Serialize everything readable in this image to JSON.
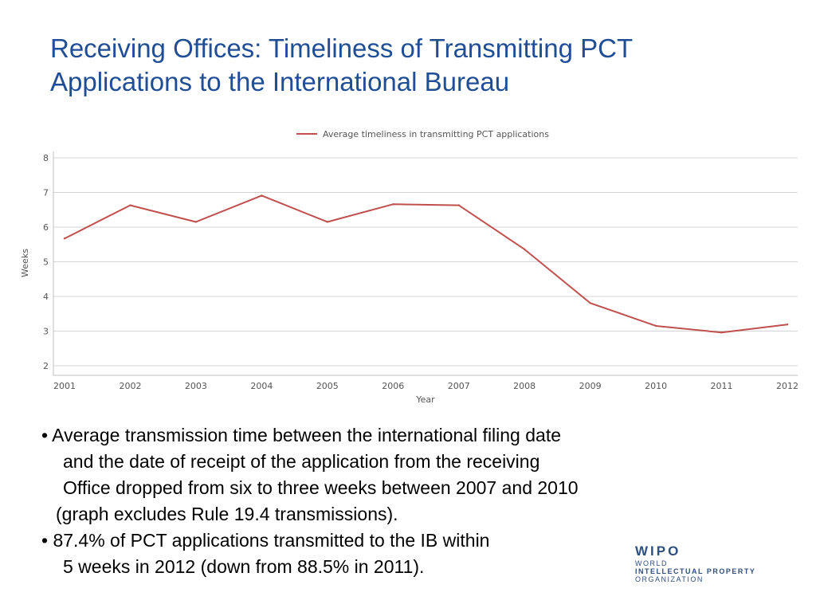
{
  "slide": {
    "title_line1": "Receiving Offices:  Timeliness of Transmitting PCT",
    "title_line2": "Applications to the International Bureau"
  },
  "chart_data": {
    "type": "line",
    "title": "",
    "xlabel": "Year",
    "ylabel": "Weeks",
    "ylim": [
      2,
      8
    ],
    "yticks": [
      2,
      3,
      4,
      5,
      6,
      7,
      8
    ],
    "grid": true,
    "legend_position": "top-center",
    "categories": [
      "2001",
      "2002",
      "2003",
      "2004",
      "2005",
      "2006",
      "2007",
      "2008",
      "2009",
      "2010",
      "2011",
      "2012"
    ],
    "series": [
      {
        "name": "Average timeliness in transmitting PCT applications",
        "color": "#c0504d",
        "values": [
          5.67,
          6.63,
          6.15,
          6.91,
          6.15,
          6.66,
          6.63,
          5.36,
          3.81,
          3.15,
          2.96,
          3.19
        ]
      }
    ]
  },
  "bullets": [
    {
      "lines": [
        "•  Average transmission time between the international filing date",
        "and the date of receipt of the application from the receiving",
        "Office dropped from six to three weeks between 2007 and 2010",
        "(graph excludes Rule 19.4 transmissions)."
      ]
    },
    {
      "lines": [
        "•  87.4% of PCT applications transmitted to the IB within",
        "5 weeks in 2012 (down from 88.5% in 2011)."
      ]
    }
  ],
  "logo": {
    "mark": "WIPO",
    "line1": "WORLD",
    "line2": "INTELLECTUAL PROPERTY",
    "line3": "ORGANIZATION"
  }
}
